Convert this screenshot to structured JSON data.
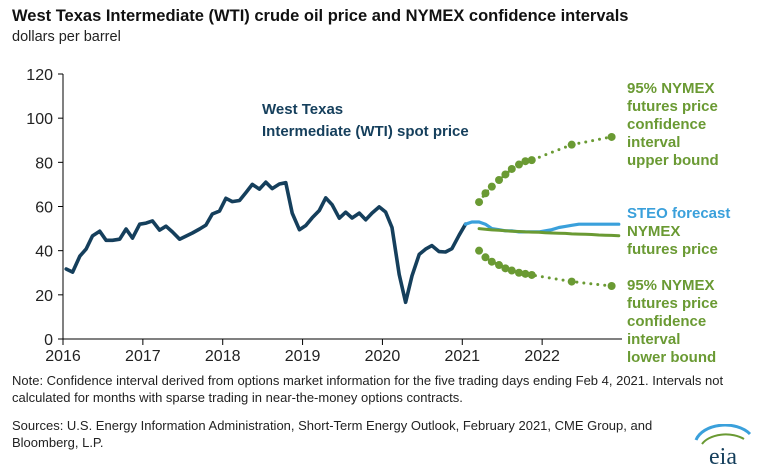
{
  "header": {
    "title": "West Texas Intermediate (WTI) crude oil price and NYMEX confidence intervals",
    "subtitle": "dollars per barrel"
  },
  "footer": {
    "note": "Note: Confidence interval derived from options market information for the five trading days ending Feb 4, 2021. Intervals not calculated for months with sparse trading in near-the-money options contracts.",
    "sources": "Sources: U.S. Energy Information Administration, Short-Term Energy Outlook, February 2021, CME Group, and Bloomberg, L.P.",
    "logo_text": "eia"
  },
  "colors": {
    "wti": "#153f5c",
    "steo": "#3aa0db",
    "futures": "#6a9a33",
    "axis": "#000000"
  },
  "chart_data": {
    "type": "line",
    "title": "West Texas Intermediate (WTI) crude oil price and NYMEX confidence intervals",
    "ylabel": "dollars per barrel",
    "xlim": [
      2016.0,
      2023.0
    ],
    "ylim": [
      0,
      120
    ],
    "yticks": [
      0,
      20,
      40,
      60,
      80,
      100,
      120
    ],
    "xticks": [
      2016,
      2017,
      2018,
      2019,
      2020,
      2021,
      2022
    ],
    "grid": false,
    "series": [
      {
        "name": "West Texas Intermediate (WTI) spot price",
        "style": "solid",
        "color_key": "wti",
        "x": [
          2016.04,
          2016.12,
          2016.21,
          2016.29,
          2016.37,
          2016.46,
          2016.54,
          2016.62,
          2016.71,
          2016.79,
          2016.87,
          2016.96,
          2017.04,
          2017.12,
          2017.21,
          2017.29,
          2017.37,
          2017.46,
          2017.54,
          2017.62,
          2017.71,
          2017.79,
          2017.87,
          2017.96,
          2018.04,
          2018.12,
          2018.21,
          2018.29,
          2018.37,
          2018.46,
          2018.54,
          2018.62,
          2018.71,
          2018.79,
          2018.87,
          2018.96,
          2019.04,
          2019.12,
          2019.21,
          2019.29,
          2019.37,
          2019.46,
          2019.54,
          2019.62,
          2019.71,
          2019.79,
          2019.87,
          2019.96,
          2020.04,
          2020.12,
          2020.21,
          2020.29,
          2020.37,
          2020.46,
          2020.54,
          2020.62,
          2020.71,
          2020.79,
          2020.87,
          2020.96,
          2021.04
        ],
        "values": [
          31.7,
          30.3,
          37.5,
          40.8,
          46.7,
          48.8,
          44.7,
          44.7,
          45.2,
          49.8,
          45.7,
          52.0,
          52.5,
          53.5,
          49.3,
          51.1,
          48.5,
          45.2,
          46.6,
          48.0,
          49.8,
          51.6,
          56.6,
          57.9,
          63.7,
          62.2,
          62.7,
          66.3,
          70.0,
          67.9,
          71.0,
          68.1,
          70.2,
          70.8,
          57.0,
          49.5,
          51.4,
          54.9,
          58.2,
          63.9,
          60.8,
          54.7,
          57.4,
          54.8,
          57.0,
          54.0,
          57.0,
          59.8,
          57.5,
          50.5,
          29.2,
          16.6,
          28.6,
          38.3,
          40.7,
          42.3,
          39.6,
          39.4,
          40.9,
          47.0,
          52.0
        ]
      },
      {
        "name": "STEO forecast",
        "style": "solid",
        "color_key": "steo",
        "x": [
          2021.04,
          2021.12,
          2021.21,
          2021.29,
          2021.37,
          2021.46,
          2021.54,
          2021.62,
          2021.71,
          2021.79,
          2021.87,
          2021.96,
          2022.04,
          2022.12,
          2022.21,
          2022.29,
          2022.37,
          2022.46,
          2022.54,
          2022.62,
          2022.71,
          2022.79,
          2022.87,
          2022.96
        ],
        "values": [
          52.0,
          53.0,
          53.0,
          52.0,
          50.0,
          49.5,
          49.0,
          49.0,
          48.5,
          48.5,
          48.5,
          48.5,
          49.0,
          49.5,
          50.5,
          51.0,
          51.5,
          52.0,
          52.0,
          52.0,
          52.0,
          52.0,
          52.0,
          52.0
        ]
      },
      {
        "name": "NYMEX futures price",
        "style": "solid",
        "color_key": "futures",
        "x": [
          2021.21,
          2021.29,
          2021.37,
          2021.46,
          2021.54,
          2021.62,
          2021.71,
          2021.79,
          2021.87,
          2021.96,
          2022.04,
          2022.12,
          2022.21,
          2022.29,
          2022.37,
          2022.46,
          2022.54,
          2022.62,
          2022.71,
          2022.79,
          2022.87,
          2022.96
        ],
        "values": [
          50.0,
          49.7,
          49.4,
          49.2,
          49.0,
          48.8,
          48.7,
          48.5,
          48.4,
          48.3,
          48.1,
          48.0,
          47.9,
          47.8,
          47.6,
          47.5,
          47.4,
          47.3,
          47.1,
          47.0,
          46.9,
          46.8
        ]
      },
      {
        "name": "95% NYMEX futures price confidence interval upper bound",
        "style": "dotted",
        "color_key": "futures",
        "x": [
          2021.21,
          2021.29,
          2021.37,
          2021.46,
          2021.54,
          2021.62,
          2021.71,
          2021.79,
          2021.87,
          2022.37,
          2022.87
        ],
        "values": [
          62.0,
          66.0,
          69.0,
          72.0,
          74.5,
          77.0,
          79.0,
          80.5,
          81.0,
          88.0,
          91.5
        ],
        "markers": [
          true,
          true,
          true,
          true,
          true,
          true,
          true,
          true,
          true,
          true,
          true
        ]
      },
      {
        "name": "95% NYMEX futures price confidence interval lower bound",
        "style": "dotted",
        "color_key": "futures",
        "x": [
          2021.21,
          2021.29,
          2021.37,
          2021.46,
          2021.54,
          2021.62,
          2021.71,
          2021.79,
          2021.87,
          2022.37,
          2022.87
        ],
        "values": [
          40.0,
          37.0,
          35.0,
          33.5,
          32.0,
          31.0,
          30.0,
          29.5,
          29.0,
          26.0,
          24.0
        ],
        "markers": [
          true,
          true,
          true,
          true,
          true,
          true,
          true,
          true,
          true,
          true,
          true
        ]
      }
    ],
    "annotations": {
      "wti_line1": "West Texas",
      "wti_line2": "Intermediate (WTI) spot price",
      "upper_lines": [
        "95% NYMEX",
        "futures price",
        "confidence",
        "interval",
        "upper bound"
      ],
      "steo": "STEO forecast",
      "futures_lines": [
        "NYMEX",
        "futures price"
      ],
      "lower_lines": [
        "95% NYMEX",
        "futures price",
        "confidence",
        "interval",
        "lower bound"
      ]
    }
  }
}
